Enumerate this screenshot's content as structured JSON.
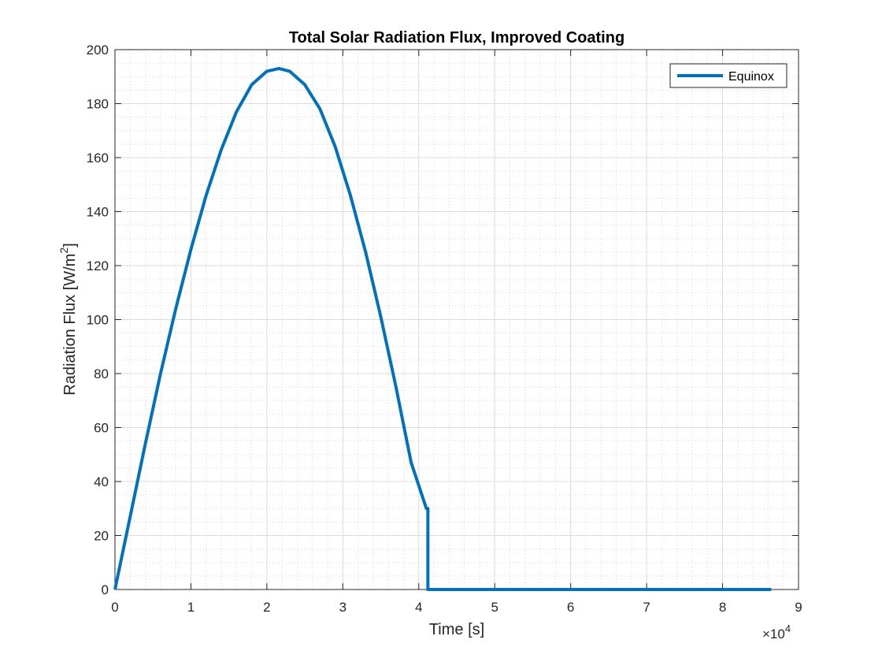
{
  "chart_data": {
    "type": "line",
    "title": "Total Solar Radiation Flux, Improved Coating",
    "xlabel": "Time [s]",
    "ylabel_main": "Radiation Flux [W/m",
    "ylabel_sup": "2",
    "ylabel_close": "]",
    "x_exponent_label": "×10",
    "x_exponent_power": "4",
    "xlim": [
      0,
      9
    ],
    "ylim": [
      0,
      200
    ],
    "x_scale_factor": 10000,
    "xticks": [
      0,
      1,
      2,
      3,
      4,
      5,
      6,
      7,
      8,
      9
    ],
    "yticks": [
      0,
      20,
      40,
      60,
      80,
      100,
      120,
      140,
      160,
      180,
      200
    ],
    "grid": true,
    "minor_grid": true,
    "legend_position": "top-right",
    "series": [
      {
        "name": "Equinox",
        "color": "#0072BD",
        "x": [
          0,
          0.2,
          0.4,
          0.6,
          0.8,
          1.0,
          1.2,
          1.4,
          1.6,
          1.8,
          2.0,
          2.16,
          2.3,
          2.5,
          2.7,
          2.9,
          3.1,
          3.3,
          3.5,
          3.7,
          3.9,
          4.1,
          4.12,
          4.12,
          5,
          6,
          7,
          8,
          8.64
        ],
        "values": [
          0,
          27,
          54,
          80,
          104,
          126,
          146,
          163,
          177,
          187,
          192,
          193,
          192,
          187,
          178,
          164,
          146,
          125,
          101,
          75,
          47,
          30,
          30,
          0,
          0,
          0,
          0,
          0,
          0
        ]
      }
    ]
  }
}
